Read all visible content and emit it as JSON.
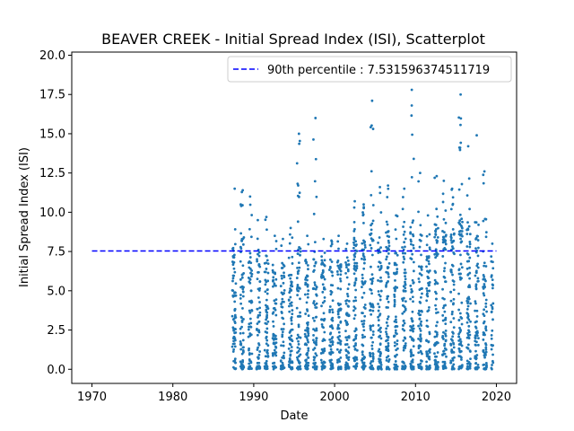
{
  "chart_data": {
    "type": "scatter",
    "title": "BEAVER CREEK - Initial Spread Index (ISI), Scatterplot",
    "xlabel": "Date",
    "ylabel": "Initial Spread Index (ISI)",
    "xlim": [
      1967.5,
      2022.5
    ],
    "ylim": [
      -0.9,
      20.2
    ],
    "xticks": [
      1970,
      1980,
      1990,
      2000,
      2010,
      2020
    ],
    "yticks": [
      0.0,
      2.5,
      5.0,
      7.5,
      10.0,
      12.5,
      15.0,
      17.5,
      20.0
    ],
    "ytick_labels": [
      "0.0",
      "2.5",
      "5.0",
      "7.5",
      "10.0",
      "12.5",
      "15.0",
      "17.5",
      "20.0"
    ],
    "grid": false,
    "legend_position": "top-right",
    "colors": {
      "points": "#1f77b4",
      "percentile_line": "#0000ff"
    },
    "percentile_line": {
      "label": "90th percentile : 7.531596374511719",
      "value": 7.531596374511719,
      "x_start": 1970,
      "x_end": 2020,
      "style": "dashed"
    },
    "series": [
      {
        "name": "ISI",
        "seasons": [
          {
            "year": 1987,
            "start": 1987.35,
            "end": 1987.8,
            "n": 70,
            "tail": 8.0,
            "max": 11.5
          },
          {
            "year": 1988,
            "start": 1988.35,
            "end": 1988.8,
            "n": 70,
            "tail": 8.5,
            "max": 11.4
          },
          {
            "year": 1989,
            "start": 1989.35,
            "end": 1989.8,
            "n": 60,
            "tail": 7.5,
            "max": 11.0
          },
          {
            "year": 1990,
            "start": 1990.35,
            "end": 1990.8,
            "n": 65,
            "tail": 7.8,
            "max": 9.5
          },
          {
            "year": 1991,
            "start": 1991.35,
            "end": 1991.8,
            "n": 70,
            "tail": 7.0,
            "max": 9.7
          },
          {
            "year": 1992,
            "start": 1992.35,
            "end": 1992.8,
            "n": 65,
            "tail": 6.5,
            "max": 8.5
          },
          {
            "year": 1993,
            "start": 1993.35,
            "end": 1993.8,
            "n": 60,
            "tail": 6.8,
            "max": 8.3
          },
          {
            "year": 1994,
            "start": 1994.35,
            "end": 1994.8,
            "n": 70,
            "tail": 7.2,
            "max": 9.0
          },
          {
            "year": 1995,
            "start": 1995.35,
            "end": 1995.8,
            "n": 75,
            "tail": 8.0,
            "max": 15.0
          },
          {
            "year": 1996,
            "start": 1996.35,
            "end": 1996.8,
            "n": 70,
            "tail": 7.0,
            "max": 8.5
          },
          {
            "year": 1997,
            "start": 1997.35,
            "end": 1997.8,
            "n": 70,
            "tail": 7.5,
            "max": 16.0
          },
          {
            "year": 1998,
            "start": 1998.35,
            "end": 1998.8,
            "n": 65,
            "tail": 7.0,
            "max": 8.3
          },
          {
            "year": 1999,
            "start": 1999.35,
            "end": 1999.8,
            "n": 65,
            "tail": 6.8,
            "max": 8.2
          },
          {
            "year": 2000,
            "start": 2000.35,
            "end": 2000.8,
            "n": 70,
            "tail": 7.0,
            "max": 8.5
          },
          {
            "year": 2001,
            "start": 2001.35,
            "end": 2001.8,
            "n": 70,
            "tail": 7.2,
            "max": 8.0
          },
          {
            "year": 2002,
            "start": 2002.35,
            "end": 2002.8,
            "n": 75,
            "tail": 8.5,
            "max": 10.7
          },
          {
            "year": 2003,
            "start": 2003.35,
            "end": 2003.8,
            "n": 75,
            "tail": 8.5,
            "max": 10.5
          },
          {
            "year": 2004,
            "start": 2004.35,
            "end": 2004.8,
            "n": 80,
            "tail": 9.5,
            "max": 17.1
          },
          {
            "year": 2005,
            "start": 2005.35,
            "end": 2005.8,
            "n": 70,
            "tail": 8.5,
            "max": 11.6
          },
          {
            "year": 2006,
            "start": 2006.35,
            "end": 2006.8,
            "n": 75,
            "tail": 8.8,
            "max": 11.7
          },
          {
            "year": 2007,
            "start": 2007.35,
            "end": 2007.8,
            "n": 70,
            "tail": 8.0,
            "max": 9.8
          },
          {
            "year": 2008,
            "start": 2008.35,
            "end": 2008.8,
            "n": 75,
            "tail": 9.0,
            "max": 11.5
          },
          {
            "year": 2009,
            "start": 2009.35,
            "end": 2009.8,
            "n": 80,
            "tail": 9.5,
            "max": 17.8
          },
          {
            "year": 2010,
            "start": 2010.35,
            "end": 2010.8,
            "n": 75,
            "tail": 9.0,
            "max": 12.5
          },
          {
            "year": 2011,
            "start": 2011.35,
            "end": 2011.8,
            "n": 70,
            "tail": 8.0,
            "max": 9.8
          },
          {
            "year": 2012,
            "start": 2012.35,
            "end": 2012.8,
            "n": 75,
            "tail": 9.0,
            "max": 12.3
          },
          {
            "year": 2013,
            "start": 2013.35,
            "end": 2013.8,
            "n": 75,
            "tail": 9.0,
            "max": 12.0
          },
          {
            "year": 2014,
            "start": 2014.35,
            "end": 2014.8,
            "n": 75,
            "tail": 9.0,
            "max": 11.5
          },
          {
            "year": 2015,
            "start": 2015.35,
            "end": 2015.8,
            "n": 80,
            "tail": 10.0,
            "max": 17.5
          },
          {
            "year": 2016,
            "start": 2016.35,
            "end": 2016.8,
            "n": 75,
            "tail": 9.5,
            "max": 14.2
          },
          {
            "year": 2017,
            "start": 2017.35,
            "end": 2017.8,
            "n": 75,
            "tail": 9.5,
            "max": 14.9
          },
          {
            "year": 2018,
            "start": 2018.35,
            "end": 2018.8,
            "n": 70,
            "tail": 9.5,
            "max": 12.6
          },
          {
            "year": 2019,
            "start": 2019.35,
            "end": 2019.6,
            "n": 30,
            "tail": 7.5,
            "max": 8.0
          }
        ]
      }
    ]
  }
}
